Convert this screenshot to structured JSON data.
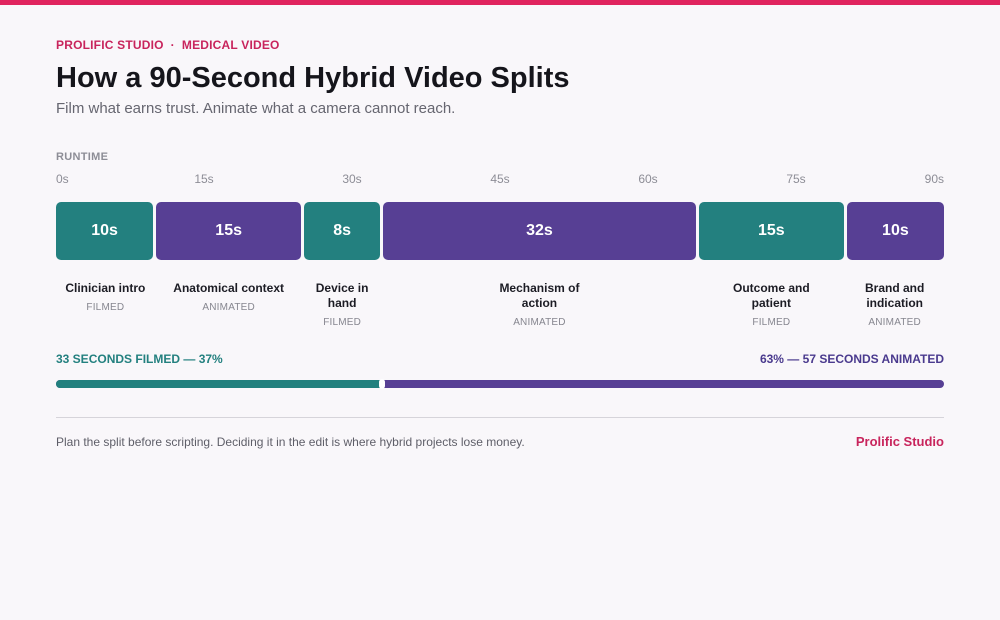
{
  "header": {
    "eyebrow_brand": "PROLIFIC STUDIO",
    "eyebrow_separator": "·",
    "eyebrow_topic": "MEDICAL VIDEO",
    "title": "How a 90-Second Hybrid Video Splits",
    "subtitle": "Film what earns trust. Animate what a camera cannot reach."
  },
  "colors": {
    "accent": "#e0245e",
    "filmed": "#23807f",
    "animated": "#573f94"
  },
  "timeline": {
    "label": "RUNTIME",
    "total_seconds": 90,
    "ticks": [
      "0s",
      "15s",
      "30s",
      "45s",
      "60s",
      "75s",
      "90s"
    ],
    "segments": [
      {
        "duration": "10s",
        "seconds": 10,
        "name": "Clinician intro",
        "kind": "FILMED"
      },
      {
        "duration": "15s",
        "seconds": 15,
        "name": "Anatomical context",
        "kind": "ANIMATED"
      },
      {
        "duration": "8s",
        "seconds": 8,
        "name": "Device in hand",
        "kind": "FILMED"
      },
      {
        "duration": "32s",
        "seconds": 32,
        "name": "Mechanism of action",
        "kind": "ANIMATED"
      },
      {
        "duration": "15s",
        "seconds": 15,
        "name": "Outcome and patient",
        "kind": "FILMED"
      },
      {
        "duration": "10s",
        "seconds": 10,
        "name": "Brand and indication",
        "kind": "ANIMATED"
      }
    ]
  },
  "split": {
    "filmed_text": "33 SECONDS FILMED — 37%",
    "animated_text": "63% — 57 SECONDS ANIMATED",
    "filmed_fraction": 0.367
  },
  "footer": {
    "note": "Plan the split before scripting. Deciding it in the edit is where hybrid projects lose money.",
    "brand": "Prolific Studio"
  }
}
